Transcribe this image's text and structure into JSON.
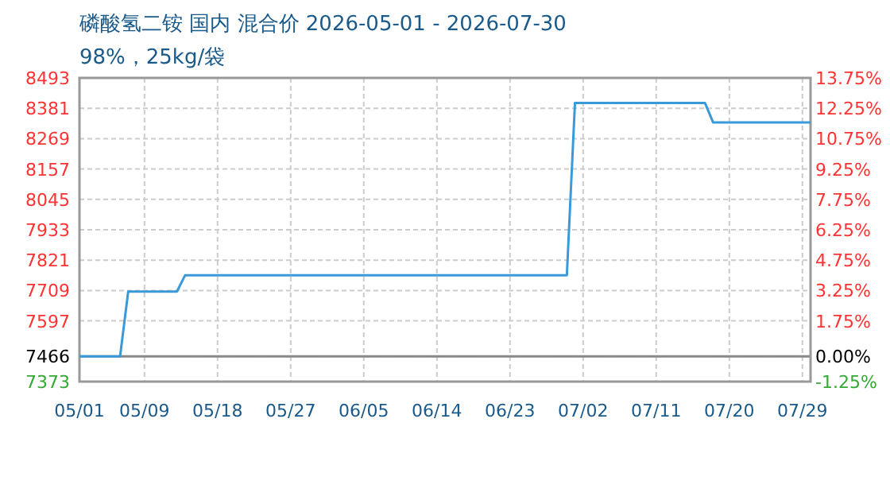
{
  "chart_data": {
    "type": "line",
    "title": "磷酸氢二铵 国内 混合价 2026-05-01 - 2026-07-30",
    "subtitle": "98%，25kg/袋",
    "x": [
      "2026-05-01",
      "2026-05-06",
      "2026-05-07",
      "2026-05-13",
      "2026-05-14",
      "2026-06-30",
      "2026-07-01",
      "2026-07-17",
      "2026-07-18",
      "2026-07-30"
    ],
    "series": [
      {
        "color": "#3a9ad9",
        "values": [
          7466,
          7466,
          7705,
          7705,
          7765,
          7765,
          8401,
          8401,
          8329,
          8329
        ]
      }
    ],
    "xlim": [
      "2026-05-01",
      "2026-07-30"
    ],
    "xticks": [
      {
        "value": "2026-05-01",
        "label": "05/01"
      },
      {
        "value": "2026-05-09",
        "label": "05/09"
      },
      {
        "value": "2026-05-18",
        "label": "05/18"
      },
      {
        "value": "2026-05-27",
        "label": "05/27"
      },
      {
        "value": "2026-06-05",
        "label": "06/05"
      },
      {
        "value": "2026-06-14",
        "label": "06/14"
      },
      {
        "value": "2026-06-23",
        "label": "06/23"
      },
      {
        "value": "2026-07-02",
        "label": "07/02"
      },
      {
        "value": "2026-07-11",
        "label": "07/11"
      },
      {
        "value": "2026-07-20",
        "label": "07/20"
      },
      {
        "value": "2026-07-29",
        "label": "07/29"
      }
    ],
    "ylim": [
      7373,
      8493
    ],
    "yticks": [
      7373,
      7466,
      7597,
      7709,
      7821,
      7933,
      8045,
      8157,
      8269,
      8381,
      8493
    ],
    "y2lim": [
      -1.25,
      13.75
    ],
    "y2ticks": [
      {
        "value": -1.25,
        "label": "-1.25%"
      },
      {
        "value": 0,
        "label": "0.00%"
      },
      {
        "value": 1.75,
        "label": "1.75%"
      },
      {
        "value": 3.25,
        "label": "3.25%"
      },
      {
        "value": 4.75,
        "label": "4.75%"
      },
      {
        "value": 6.25,
        "label": "6.25%"
      },
      {
        "value": 7.75,
        "label": "7.75%"
      },
      {
        "value": 9.25,
        "label": "9.25%"
      },
      {
        "value": 10.75,
        "label": "10.75%"
      },
      {
        "value": 12.25,
        "label": "12.25%"
      },
      {
        "value": 13.75,
        "label": "13.75%"
      }
    ],
    "grid": true,
    "ref_lines": [
      {
        "axis": "y",
        "value": 7466,
        "color": "#888888"
      }
    ]
  }
}
